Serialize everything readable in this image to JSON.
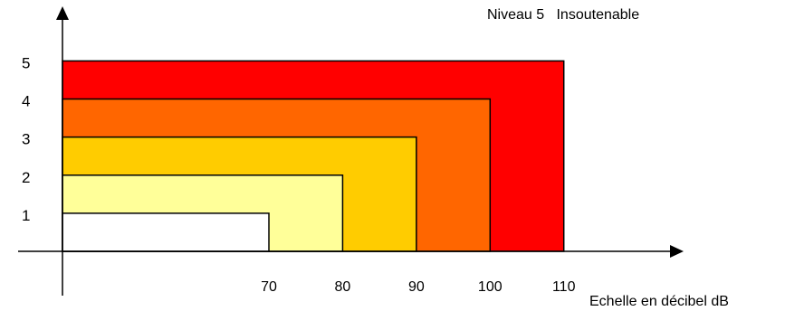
{
  "chart_data": {
    "type": "bar",
    "title": "Niveau 5   Insoutenable",
    "xlabel": "Echelle en décibel dB",
    "ylabel": "",
    "x_ticks": [
      70,
      80,
      90,
      100,
      110
    ],
    "y_ticks": [
      "1",
      "2",
      "3",
      "4",
      "5"
    ],
    "xlim": [
      42,
      140
    ],
    "ylim": [
      0,
      6.6
    ],
    "grid": false,
    "series": [
      {
        "level": 5,
        "value": 110,
        "color": "#ff0000"
      },
      {
        "level": 4,
        "value": 100,
        "color": "#ff6600"
      },
      {
        "level": 3,
        "value": 90,
        "color": "#ffcc00"
      },
      {
        "level": 2,
        "value": 80,
        "color": "#ffff99"
      },
      {
        "level": 1,
        "value": 70,
        "color": "#ffffff"
      }
    ]
  }
}
